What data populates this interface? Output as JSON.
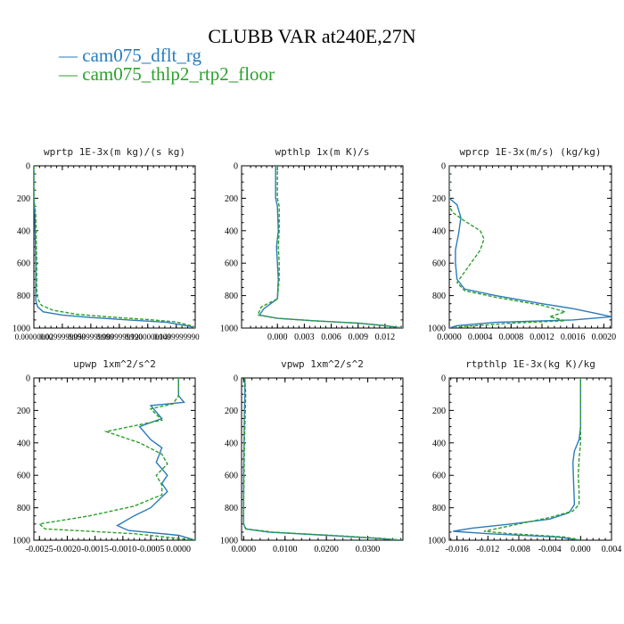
{
  "title": "CLUBB VAR at240E,27N",
  "legend": [
    {
      "label": "— cam075_dflt_rg",
      "color": "#2b7bba"
    },
    {
      "label": "— cam075_thlp2_rtp2_floor",
      "color": "#2ca02c"
    }
  ],
  "chart_data": [
    {
      "type": "line",
      "title": "wprtp  1E-3x(m kg)/(s kg)",
      "xlim": [
        0,
        0.17
      ],
      "ylim": [
        1000,
        0
      ],
      "x_ticks": [
        0.0,
        0.03,
        0.06,
        0.09,
        0.12,
        0.15
      ],
      "x_tick_labels": [
        "0.00000000",
        "0.0299999990",
        "0.0599999990",
        "0.0899999990",
        "0.1200000000",
        "0.1499999990"
      ],
      "y_ticks": [
        0,
        200,
        400,
        600,
        800,
        1000
      ],
      "y_tick_labels": [
        "0",
        "200",
        "400",
        "600",
        "800",
        "1000"
      ],
      "series": [
        {
          "name": "cam075_dflt_rg",
          "color": "#2b7bba",
          "dash": false,
          "x": [
            0,
            0,
            0.001,
            0.002,
            0.002,
            0.002,
            0.004,
            0.01,
            0.03,
            0.06,
            0.1,
            0.14,
            0.165,
            0.17
          ],
          "y": [
            0,
            200,
            300,
            600,
            780,
            830,
            870,
            900,
            920,
            935,
            950,
            965,
            990,
            1000
          ]
        },
        {
          "name": "cam075_thlp2_rtp2_floor",
          "color": "#2ca02c",
          "dash": true,
          "x": [
            0,
            0,
            0.002,
            0.003,
            0.003,
            0.004,
            0.008,
            0.02,
            0.045,
            0.08,
            0.12,
            0.15,
            0.165,
            0.17
          ],
          "y": [
            0,
            200,
            300,
            600,
            770,
            820,
            860,
            890,
            915,
            932,
            948,
            962,
            985,
            1000
          ]
        }
      ]
    },
    {
      "type": "line",
      "title": "wpthlp  1x(m K)/s",
      "xlim": [
        -0.004,
        0.014
      ],
      "ylim": [
        1000,
        0
      ],
      "x_ticks": [
        0.0,
        0.003,
        0.006,
        0.009,
        0.012
      ],
      "x_tick_labels": [
        "0.000",
        "0.003",
        "0.006",
        "0.009",
        "0.012"
      ],
      "y_ticks": [
        0,
        200,
        400,
        600,
        800,
        1000
      ],
      "y_tick_labels": [
        "0",
        "200",
        "400",
        "600",
        "800",
        "1000"
      ],
      "series": [
        {
          "name": "cam075_dflt_rg",
          "color": "#2b7bba",
          "dash": false,
          "x": [
            -0.0002,
            -0.0002,
            0.0,
            0.0001,
            -0.0001,
            0.0,
            0.0001,
            0.0,
            -0.0015,
            -0.002,
            0.0,
            0.004,
            0.009,
            0.012,
            0.014
          ],
          "y": [
            0,
            200,
            250,
            400,
            500,
            600,
            700,
            820,
            880,
            920,
            940,
            955,
            970,
            985,
            1000
          ]
        },
        {
          "name": "cam075_thlp2_rtp2_floor",
          "color": "#2ca02c",
          "dash": true,
          "x": [
            0.0,
            0.0,
            0.0002,
            0.0002,
            0.0001,
            0.0002,
            0.0002,
            0.0,
            -0.0018,
            -0.0022,
            0.0,
            0.004,
            0.009,
            0.012,
            0.014
          ],
          "y": [
            0,
            200,
            250,
            400,
            500,
            600,
            700,
            820,
            870,
            920,
            940,
            955,
            970,
            985,
            1000
          ]
        }
      ]
    },
    {
      "type": "line",
      "title": "wprcp  1E-3x(m/s) (kg/kg)",
      "xlim": [
        0,
        0.0021
      ],
      "ylim": [
        1000,
        0
      ],
      "x_ticks": [
        0.0,
        0.0004,
        0.0008,
        0.0012,
        0.0016,
        0.002
      ],
      "x_tick_labels": [
        "0.0000",
        "0.0004",
        "0.0008",
        "0.0012",
        "0.0016",
        "0.0020"
      ],
      "y_ticks": [
        0,
        200,
        400,
        600,
        800,
        1000
      ],
      "y_tick_labels": [
        "0",
        "200",
        "400",
        "600",
        "800",
        "1000"
      ],
      "series": [
        {
          "name": "cam075_dflt_rg",
          "color": "#2b7bba",
          "dash": false,
          "x": [
            0,
            0,
            0.0001,
            0.00015,
            0.00012,
            8e-05,
            8e-05,
            0.0001,
            0.0002,
            0.0006,
            0.0012,
            0.0016,
            0.0019,
            0.0021,
            0.0016,
            0.0006,
            0.0001,
            0.0
          ],
          "y": [
            0,
            200,
            240,
            320,
            420,
            520,
            600,
            700,
            760,
            800,
            850,
            880,
            910,
            930,
            950,
            965,
            985,
            1000
          ]
        },
        {
          "name": "cam075_thlp2_rtp2_floor",
          "color": "#2ca02c",
          "dash": true,
          "x": [
            0,
            0,
            5e-05,
            0.0002,
            0.0004,
            0.00045,
            0.0004,
            0.00025,
            0.0001,
            0.0002,
            0.0006,
            0.0012,
            0.0015,
            0.0013,
            0.0015,
            0.0008,
            0.0002,
            0.0
          ],
          "y": [
            0,
            250,
            290,
            340,
            400,
            450,
            520,
            620,
            720,
            770,
            810,
            860,
            900,
            930,
            955,
            970,
            990,
            1000
          ]
        }
      ]
    },
    {
      "type": "line",
      "title": "upwp  1xm^2/s^2",
      "xlim": [
        -0.0026,
        0.0003
      ],
      "ylim": [
        1000,
        0
      ],
      "x_ticks": [
        -0.0025,
        -0.002,
        -0.0015,
        -0.001,
        -0.0005,
        0.0
      ],
      "x_tick_labels": [
        "-0.0025",
        "-0.0020",
        "-0.0015",
        "-0.0010",
        "-0.0005",
        "0.0000"
      ],
      "y_ticks": [
        0,
        200,
        400,
        600,
        800,
        1000
      ],
      "y_tick_labels": [
        "0",
        "200",
        "400",
        "600",
        "800",
        "1000"
      ],
      "series": [
        {
          "name": "cam075_dflt_rg",
          "color": "#2b7bba",
          "dash": false,
          "x": [
            0.0,
            0.0,
            0.0001,
            -0.0005,
            -0.0003,
            -0.0007,
            -0.0005,
            -0.0003,
            -0.0004,
            -0.0002,
            -0.0003,
            -0.0002,
            -0.0005,
            -0.0008,
            -0.0011,
            -0.0009,
            0.0,
            0.0003
          ],
          "y": [
            0,
            110,
            150,
            170,
            250,
            300,
            380,
            430,
            520,
            600,
            650,
            700,
            800,
            850,
            910,
            940,
            970,
            1000
          ]
        },
        {
          "name": "cam075_thlp2_rtp2_floor",
          "color": "#2ca02c",
          "dash": true,
          "x": [
            0.0,
            0.0,
            -0.0001,
            -0.0005,
            -0.0003,
            -0.0013,
            -0.0007,
            -0.0003,
            -0.0002,
            -0.0004,
            -0.0003,
            -0.0003,
            -0.0008,
            -0.0016,
            -0.0025,
            -0.0024,
            -0.0008,
            0.0003
          ],
          "y": [
            0,
            110,
            160,
            190,
            260,
            330,
            400,
            470,
            530,
            600,
            660,
            720,
            790,
            850,
            900,
            930,
            960,
            1000
          ]
        }
      ]
    },
    {
      "type": "line",
      "title": "vpwp  1xm^2/s^2",
      "xlim": [
        -0.0005,
        0.0385
      ],
      "ylim": [
        1000,
        0
      ],
      "x_ticks": [
        0.0,
        0.01,
        0.02,
        0.03
      ],
      "x_tick_labels": [
        "0.0000",
        "0.0100",
        "0.0200",
        "0.0300"
      ],
      "y_ticks": [
        0,
        200,
        400,
        600,
        800,
        1000
      ],
      "y_tick_labels": [
        "0",
        "200",
        "400",
        "600",
        "800",
        "1000"
      ],
      "series": [
        {
          "name": "cam075_dflt_rg",
          "color": "#2b7bba",
          "dash": false,
          "x": [
            0.0003,
            0.0003,
            0.0002,
            0.0001,
            0.0,
            0.0,
            0.0,
            0.0005,
            0.006,
            0.02,
            0.032,
            0.038
          ],
          "y": [
            0,
            100,
            200,
            400,
            600,
            800,
            900,
            930,
            950,
            970,
            988,
            1000
          ]
        },
        {
          "name": "cam075_thlp2_rtp2_floor",
          "color": "#2ca02c",
          "dash": true,
          "x": [
            0.0003,
            0.0005,
            0.0004,
            0.0002,
            0.0001,
            0.0,
            0.0,
            0.0006,
            0.007,
            0.021,
            0.033,
            0.038
          ],
          "y": [
            0,
            100,
            200,
            400,
            600,
            800,
            900,
            930,
            950,
            970,
            988,
            1000
          ]
        }
      ]
    },
    {
      "type": "line",
      "title": "rtpthlp  1E-3x(kg K)/kg",
      "xlim": [
        -0.017,
        0.004
      ],
      "ylim": [
        1000,
        0
      ],
      "x_ticks": [
        -0.016,
        -0.012,
        -0.008,
        -0.004,
        0.0,
        0.004
      ],
      "x_tick_labels": [
        "-0.016",
        "-0.012",
        "-0.008",
        "-0.004",
        "0.000",
        "0.004"
      ],
      "y_ticks": [
        0,
        200,
        400,
        600,
        800,
        1000
      ],
      "y_tick_labels": [
        "0",
        "200",
        "400",
        "600",
        "800",
        "1000"
      ],
      "series": [
        {
          "name": "cam075_dflt_rg",
          "color": "#2b7bba",
          "dash": false,
          "x": [
            0.0,
            0.0,
            -0.0002,
            -0.0008,
            -0.001,
            -0.0009,
            -0.0008,
            -0.0015,
            -0.004,
            -0.009,
            -0.014,
            -0.0165,
            -0.012,
            -0.003,
            0.0
          ],
          "y": [
            0,
            300,
            380,
            450,
            520,
            650,
            780,
            830,
            870,
            900,
            925,
            945,
            960,
            980,
            1000
          ]
        },
        {
          "name": "cam075_thlp2_rtp2_floor",
          "color": "#2ca02c",
          "dash": true,
          "x": [
            0.0,
            0.0,
            0.0,
            -0.0002,
            -0.0003,
            -0.0002,
            -0.0002,
            -0.001,
            -0.004,
            -0.008,
            -0.011,
            -0.0125,
            -0.009,
            -0.002,
            0.0
          ],
          "y": [
            0,
            300,
            400,
            500,
            600,
            700,
            780,
            820,
            860,
            900,
            930,
            945,
            960,
            980,
            1000
          ]
        }
      ]
    }
  ]
}
